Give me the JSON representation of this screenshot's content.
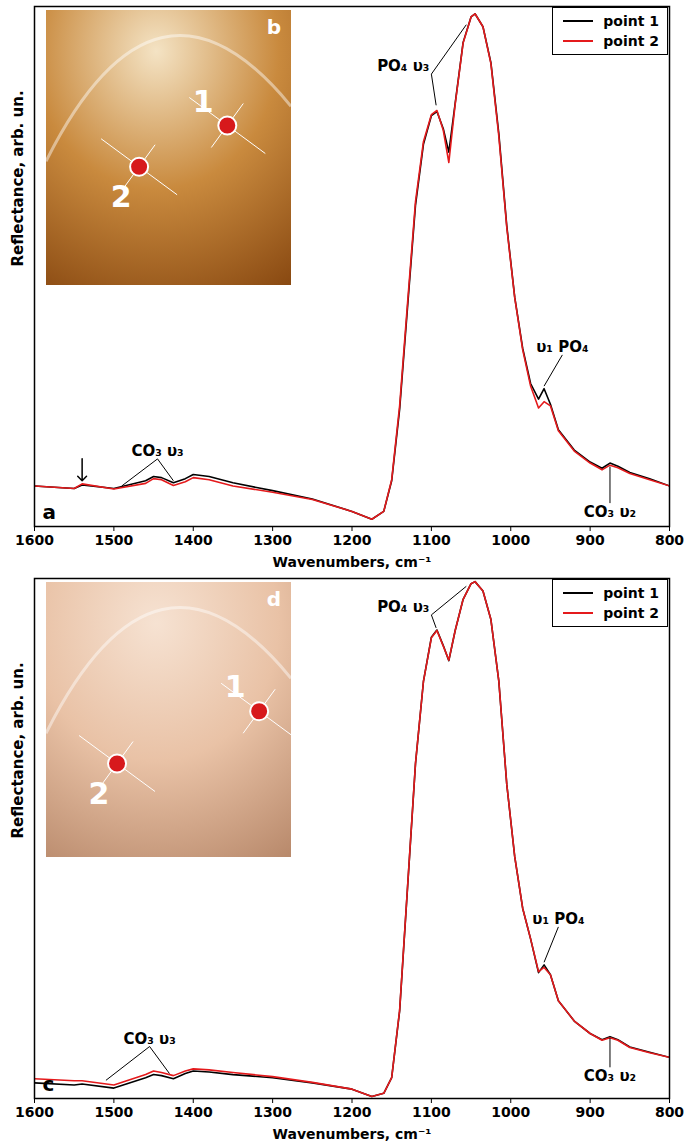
{
  "chart_data": [
    {
      "type": "line",
      "label": "a",
      "xlabel": "Wavenumbers, cm⁻¹",
      "ylabel": "Reflectance, arb. un.",
      "x": [
        1600,
        1550,
        1540,
        1500,
        1460,
        1450,
        1440,
        1425,
        1410,
        1400,
        1380,
        1350,
        1300,
        1250,
        1200,
        1175,
        1160,
        1150,
        1140,
        1130,
        1120,
        1110,
        1100,
        1093,
        1085,
        1078,
        1070,
        1060,
        1050,
        1045,
        1035,
        1025,
        1015,
        1005,
        995,
        985,
        975,
        965,
        958,
        950,
        940,
        920,
        900,
        885,
        875,
        865,
        850,
        825,
        800
      ],
      "series": [
        {
          "name": "point 1",
          "color": "#000000",
          "values": [
            0.078,
            0.073,
            0.08,
            0.073,
            0.088,
            0.096,
            0.094,
            0.084,
            0.092,
            0.1,
            0.096,
            0.084,
            0.069,
            0.053,
            0.029,
            0.014,
            0.029,
            0.088,
            0.225,
            0.422,
            0.618,
            0.735,
            0.79,
            0.798,
            0.765,
            0.72,
            0.814,
            0.931,
            0.98,
            0.986,
            0.961,
            0.892,
            0.755,
            0.578,
            0.441,
            0.343,
            0.275,
            0.245,
            0.265,
            0.235,
            0.186,
            0.147,
            0.124,
            0.112,
            0.122,
            0.116,
            0.104,
            0.092,
            0.078
          ]
        },
        {
          "name": "point 2",
          "color": "#e41a1c",
          "values": [
            0.078,
            0.073,
            0.082,
            0.072,
            0.083,
            0.092,
            0.09,
            0.079,
            0.086,
            0.094,
            0.09,
            0.078,
            0.066,
            0.052,
            0.029,
            0.014,
            0.029,
            0.09,
            0.232,
            0.43,
            0.625,
            0.74,
            0.792,
            0.8,
            0.762,
            0.7,
            0.812,
            0.93,
            0.98,
            0.986,
            0.961,
            0.89,
            0.75,
            0.575,
            0.44,
            0.34,
            0.27,
            0.228,
            0.24,
            0.232,
            0.184,
            0.145,
            0.122,
            0.109,
            0.118,
            0.113,
            0.102,
            0.09,
            0.078
          ]
        }
      ],
      "xlim": [
        1600,
        800
      ],
      "xticks": [
        1600,
        1500,
        1400,
        1300,
        1200,
        1100,
        1000,
        900,
        800
      ],
      "ylim": [
        0,
        1
      ],
      "yticks": [],
      "tick_labels": "x",
      "grid": false,
      "legend": "upper right",
      "annotations": [
        {
          "text": "PO₄ υ₃",
          "x": 1100,
          "y": 0.87,
          "targets": [
            [
              1094,
              0.81
            ],
            [
              1056,
              0.965
            ]
          ]
        },
        {
          "text": "υ₁ PO₄",
          "x": 935,
          "y": 0.33,
          "targets": [
            [
              958,
              0.27
            ]
          ]
        },
        {
          "text": "CO₃ υ₂",
          "x": 875,
          "y": 0.045,
          "targets": [
            [
              875,
              0.115
            ]
          ]
        },
        {
          "text": "CO₃ υ₃",
          "x": 1445,
          "y": 0.13,
          "targets": [
            [
              1490,
              0.078
            ],
            [
              1425,
              0.088
            ]
          ]
        }
      ],
      "arrows": [
        [
          1540,
          0.088
        ]
      ],
      "inset": {
        "label": "b",
        "points": [
          "1",
          "2"
        ]
      }
    },
    {
      "type": "line",
      "label": "c",
      "xlabel": "Wavenumbers, cm⁻¹",
      "ylabel": "Reflectance, arb. un.",
      "x": [
        1600,
        1550,
        1540,
        1500,
        1460,
        1450,
        1440,
        1425,
        1410,
        1400,
        1380,
        1350,
        1300,
        1250,
        1200,
        1175,
        1160,
        1150,
        1140,
        1130,
        1120,
        1110,
        1100,
        1093,
        1085,
        1078,
        1070,
        1060,
        1050,
        1045,
        1035,
        1025,
        1015,
        1005,
        995,
        985,
        975,
        965,
        958,
        950,
        940,
        920,
        900,
        885,
        875,
        865,
        850,
        825,
        800
      ],
      "series": [
        {
          "name": "point 1",
          "color": "#000000",
          "values": [
            0.03,
            0.026,
            0.028,
            0.02,
            0.04,
            0.046,
            0.044,
            0.038,
            0.048,
            0.053,
            0.051,
            0.046,
            0.04,
            0.03,
            0.018,
            0.004,
            0.01,
            0.04,
            0.168,
            0.406,
            0.644,
            0.802,
            0.887,
            0.901,
            0.871,
            0.842,
            0.9,
            0.96,
            0.99,
            0.994,
            0.976,
            0.921,
            0.802,
            0.604,
            0.465,
            0.366,
            0.307,
            0.242,
            0.257,
            0.238,
            0.188,
            0.149,
            0.125,
            0.113,
            0.119,
            0.113,
            0.099,
            0.089,
            0.079
          ]
        },
        {
          "name": "point 2",
          "color": "#e41a1c",
          "values": [
            0.038,
            0.034,
            0.034,
            0.026,
            0.046,
            0.053,
            0.05,
            0.044,
            0.053,
            0.057,
            0.055,
            0.05,
            0.042,
            0.031,
            0.018,
            0.004,
            0.01,
            0.04,
            0.17,
            0.408,
            0.645,
            0.802,
            0.886,
            0.9,
            0.87,
            0.843,
            0.9,
            0.96,
            0.99,
            0.994,
            0.976,
            0.921,
            0.802,
            0.604,
            0.465,
            0.366,
            0.307,
            0.244,
            0.252,
            0.238,
            0.188,
            0.149,
            0.125,
            0.112,
            0.117,
            0.112,
            0.098,
            0.088,
            0.079
          ]
        }
      ],
      "xlim": [
        1600,
        800
      ],
      "xticks": [
        1600,
        1500,
        1400,
        1300,
        1200,
        1100,
        1000,
        900,
        800
      ],
      "ylim": [
        0,
        1
      ],
      "yticks": [],
      "tick_labels": "x",
      "grid": false,
      "legend": "upper right",
      "annotations": [
        {
          "text": "PO₄ υ₃",
          "x": 1100,
          "y": 0.93,
          "targets": [
            [
              1094,
              0.905
            ],
            [
              1056,
              0.985
            ]
          ]
        },
        {
          "text": "υ₁ PO₄",
          "x": 940,
          "y": 0.33,
          "targets": [
            [
              958,
              0.262
            ]
          ]
        },
        {
          "text": "CO₃ υ₂",
          "x": 875,
          "y": 0.06,
          "targets": [
            [
              875,
              0.117
            ]
          ]
        },
        {
          "text": "CO₃ υ₃",
          "x": 1455,
          "y": 0.1,
          "targets": [
            [
              1510,
              0.035
            ],
            [
              1430,
              0.048
            ]
          ]
        }
      ],
      "arrows": [],
      "inset": {
        "label": "d",
        "points": [
          "1",
          "2"
        ]
      }
    }
  ]
}
